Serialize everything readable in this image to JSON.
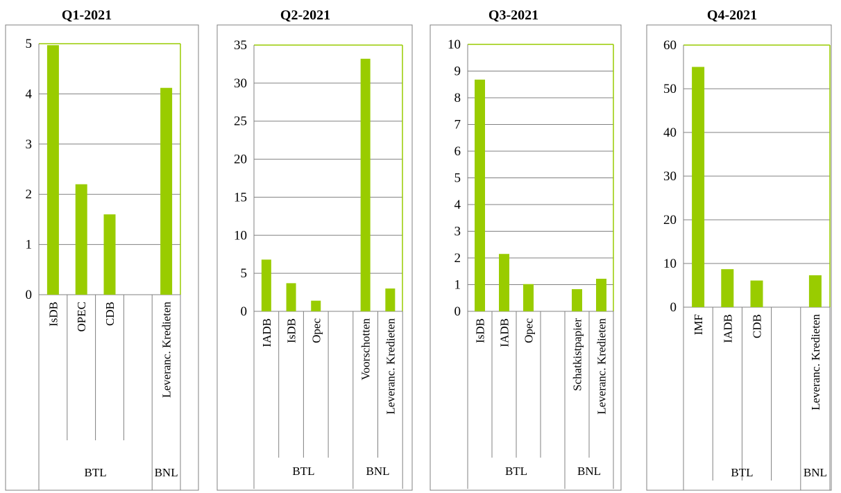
{
  "chart_data": [
    {
      "type": "bar",
      "title": "Q1-2021",
      "ylim": [
        0,
        5
      ],
      "yticks": [
        0,
        1,
        2,
        3,
        4,
        5
      ],
      "groups": [
        {
          "name": "BTL",
          "categories": [
            "IsDB",
            "OPEC",
            "CDB",
            ""
          ],
          "values": [
            4.97,
            2.2,
            1.6,
            null
          ]
        },
        {
          "name": "BNL",
          "categories": [
            "Leveranc. Kredieten"
          ],
          "values": [
            4.12
          ]
        }
      ],
      "bar_color": "#99cc00",
      "grid": true
    },
    {
      "type": "bar",
      "title": "Q2-2021",
      "ylim": [
        0,
        35
      ],
      "yticks": [
        0,
        5,
        10,
        15,
        20,
        25,
        30,
        35
      ],
      "groups": [
        {
          "name": "BTL",
          "categories": [
            "IADB",
            "IsDB",
            "Opec",
            ""
          ],
          "values": [
            6.8,
            3.7,
            1.4,
            null
          ]
        },
        {
          "name": "BNL",
          "categories": [
            "Voorschotten",
            "Leveranc. Kredieten"
          ],
          "values": [
            33.2,
            3.0
          ]
        }
      ],
      "bar_color": "#99cc00",
      "grid": true
    },
    {
      "type": "bar",
      "title": "Q3-2021",
      "ylim": [
        0,
        10
      ],
      "yticks": [
        0,
        1,
        2,
        3,
        4,
        5,
        6,
        7,
        8,
        9,
        10
      ],
      "groups": [
        {
          "name": "BTL",
          "categories": [
            "IsDB",
            "IADB",
            "Opec",
            ""
          ],
          "values": [
            8.68,
            2.15,
            1.02,
            null
          ]
        },
        {
          "name": "BNL",
          "categories": [
            "Schatkistpapier",
            "Leveranc. Kredieten"
          ],
          "values": [
            0.83,
            1.22
          ]
        }
      ],
      "bar_color": "#99cc00",
      "grid": true
    },
    {
      "type": "bar",
      "title": "Q4-2021",
      "ylim": [
        0,
        60
      ],
      "yticks": [
        0,
        10,
        20,
        30,
        40,
        50,
        60
      ],
      "groups": [
        {
          "name": "BTL",
          "categories": [
            "IMF",
            "IADB",
            "CDB",
            ""
          ],
          "values": [
            55.0,
            8.7,
            6.1,
            null
          ]
        },
        {
          "name": "BNL",
          "categories": [
            "Leveranc. Kredieten"
          ],
          "values": [
            7.3
          ]
        }
      ],
      "bar_color": "#99cc00",
      "grid": true
    }
  ]
}
